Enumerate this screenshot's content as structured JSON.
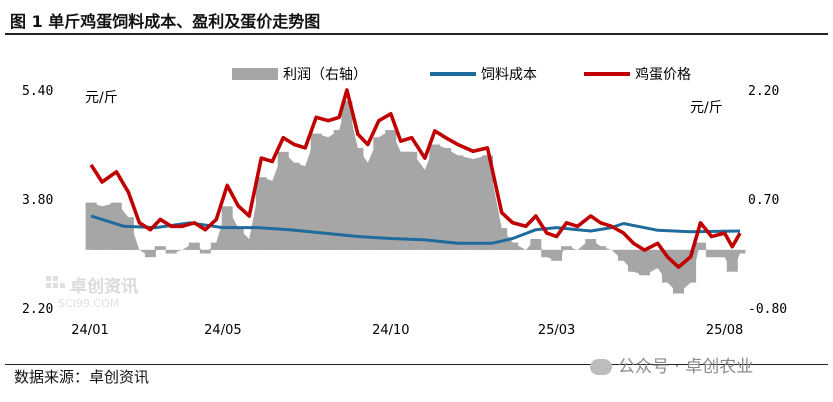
{
  "header": {
    "title": "图 1 单斤鸡蛋饲料成本、盈利及蛋价走势图"
  },
  "footer": {
    "source": "数据来源：卓创资讯",
    "wechat": "公众号 · 卓创农业"
  },
  "watermark": {
    "brand": "卓创资讯",
    "site": "SCI99.COM"
  },
  "colors": {
    "profit": "#a6a6a6",
    "feed": "#1f6b9b",
    "egg": "#c00000"
  },
  "chart_data": {
    "type": "line",
    "left_unit": "元/斤",
    "right_unit": "元/斤",
    "left_ticks": [
      "5.40",
      "3.80",
      "2.20"
    ],
    "right_ticks": [
      "2.20",
      "0.70",
      "-0.80"
    ],
    "x_ticks": [
      "24/01",
      "24/05",
      "24/10",
      "25/03",
      "25/08"
    ],
    "x_range": [
      "2024-01-01",
      "2025-08-15"
    ],
    "ylim_left": [
      2.2,
      5.4
    ],
    "ylim_right": [
      -0.8,
      2.2
    ],
    "legend": [
      "利润（右轴）",
      "饲料成本",
      "鸡蛋价格"
    ],
    "series": [
      {
        "name": "鸡蛋价格",
        "axis": "left",
        "x": [
          "2024-01-02",
          "2024-01-12",
          "2024-01-25",
          "2024-02-05",
          "2024-02-15",
          "2024-02-25",
          "2024-03-05",
          "2024-03-15",
          "2024-03-25",
          "2024-04-05",
          "2024-04-15",
          "2024-04-25",
          "2024-05-05",
          "2024-05-15",
          "2024-05-25",
          "2024-06-05",
          "2024-06-15",
          "2024-06-25",
          "2024-07-05",
          "2024-07-15",
          "2024-07-25",
          "2024-08-05",
          "2024-08-15",
          "2024-08-22",
          "2024-09-01",
          "2024-09-10",
          "2024-09-20",
          "2024-10-01",
          "2024-10-10",
          "2024-10-20",
          "2024-11-01",
          "2024-11-10",
          "2024-11-20",
          "2024-12-01",
          "2024-12-15",
          "2024-12-28",
          "2025-01-10",
          "2025-01-20",
          "2025-02-01",
          "2025-02-10",
          "2025-02-20",
          "2025-03-01",
          "2025-03-10",
          "2025-03-20",
          "2025-04-01",
          "2025-04-10",
          "2025-04-20",
          "2025-05-01",
          "2025-05-10",
          "2025-05-20",
          "2025-06-01",
          "2025-06-10",
          "2025-06-20",
          "2025-07-01",
          "2025-07-10",
          "2025-07-20",
          "2025-08-01",
          "2025-08-08",
          "2025-08-15"
        ],
        "values": [
          4.3,
          4.05,
          4.2,
          3.9,
          3.45,
          3.35,
          3.5,
          3.4,
          3.4,
          3.45,
          3.35,
          3.5,
          4.0,
          3.7,
          3.55,
          4.4,
          4.35,
          4.7,
          4.6,
          4.55,
          5.0,
          4.95,
          5.0,
          5.4,
          4.75,
          4.6,
          4.95,
          5.05,
          4.65,
          4.7,
          4.4,
          4.8,
          4.7,
          4.6,
          4.5,
          4.55,
          3.6,
          3.45,
          3.4,
          3.55,
          3.3,
          3.25,
          3.45,
          3.4,
          3.55,
          3.45,
          3.4,
          3.3,
          3.15,
          3.05,
          3.15,
          2.95,
          2.8,
          2.95,
          3.45,
          3.25,
          3.3,
          3.1,
          3.3
        ]
      },
      {
        "name": "饲料成本",
        "axis": "left",
        "x": [
          "2024-01-02",
          "2024-02-01",
          "2024-03-01",
          "2024-04-01",
          "2024-05-01",
          "2024-06-01",
          "2024-07-01",
          "2024-08-01",
          "2024-09-01",
          "2024-10-01",
          "2024-11-01",
          "2024-12-01",
          "2025-01-01",
          "2025-01-20",
          "2025-02-10",
          "2025-03-01",
          "2025-04-01",
          "2025-04-20",
          "2025-05-01",
          "2025-06-01",
          "2025-07-01",
          "2025-08-15"
        ],
        "values": [
          3.55,
          3.4,
          3.38,
          3.45,
          3.38,
          3.38,
          3.35,
          3.3,
          3.25,
          3.22,
          3.2,
          3.15,
          3.15,
          3.22,
          3.35,
          3.38,
          3.33,
          3.38,
          3.44,
          3.34,
          3.32,
          3.33
        ]
      },
      {
        "name": "利润（右轴）",
        "axis": "right",
        "x": [
          "2024-01-02",
          "2024-01-12",
          "2024-01-25",
          "2024-02-05",
          "2024-02-15",
          "2024-02-25",
          "2024-03-05",
          "2024-03-15",
          "2024-03-25",
          "2024-04-05",
          "2024-04-15",
          "2024-04-25",
          "2024-05-05",
          "2024-05-15",
          "2024-05-25",
          "2024-06-05",
          "2024-06-15",
          "2024-06-25",
          "2024-07-05",
          "2024-07-15",
          "2024-07-25",
          "2024-08-05",
          "2024-08-15",
          "2024-08-22",
          "2024-09-01",
          "2024-09-10",
          "2024-09-20",
          "2024-10-01",
          "2024-10-10",
          "2024-10-20",
          "2024-11-01",
          "2024-11-10",
          "2024-11-20",
          "2024-12-01",
          "2024-12-15",
          "2024-12-28",
          "2025-01-10",
          "2025-01-20",
          "2025-02-01",
          "2025-02-10",
          "2025-02-20",
          "2025-03-01",
          "2025-03-10",
          "2025-03-20",
          "2025-04-01",
          "2025-04-10",
          "2025-04-20",
          "2025-05-01",
          "2025-05-10",
          "2025-05-20",
          "2025-06-01",
          "2025-06-10",
          "2025-06-20",
          "2025-07-01",
          "2025-07-10",
          "2025-07-20",
          "2025-08-01",
          "2025-08-08",
          "2025-08-15"
        ],
        "values": [
          0.65,
          0.6,
          0.65,
          0.45,
          0.0,
          -0.1,
          0.05,
          -0.05,
          0.0,
          0.1,
          -0.05,
          0.1,
          0.6,
          0.3,
          0.15,
          1.0,
          0.95,
          1.35,
          1.2,
          1.15,
          1.6,
          1.55,
          1.65,
          2.05,
          1.4,
          1.2,
          1.55,
          1.65,
          1.35,
          1.35,
          1.1,
          1.45,
          1.4,
          1.3,
          1.25,
          1.3,
          0.3,
          0.1,
          0.0,
          0.15,
          -0.1,
          -0.15,
          0.05,
          0.0,
          0.15,
          0.05,
          0.0,
          -0.15,
          -0.3,
          -0.35,
          -0.25,
          -0.45,
          -0.6,
          -0.45,
          0.1,
          -0.1,
          -0.1,
          -0.3,
          -0.05
        ]
      }
    ]
  }
}
